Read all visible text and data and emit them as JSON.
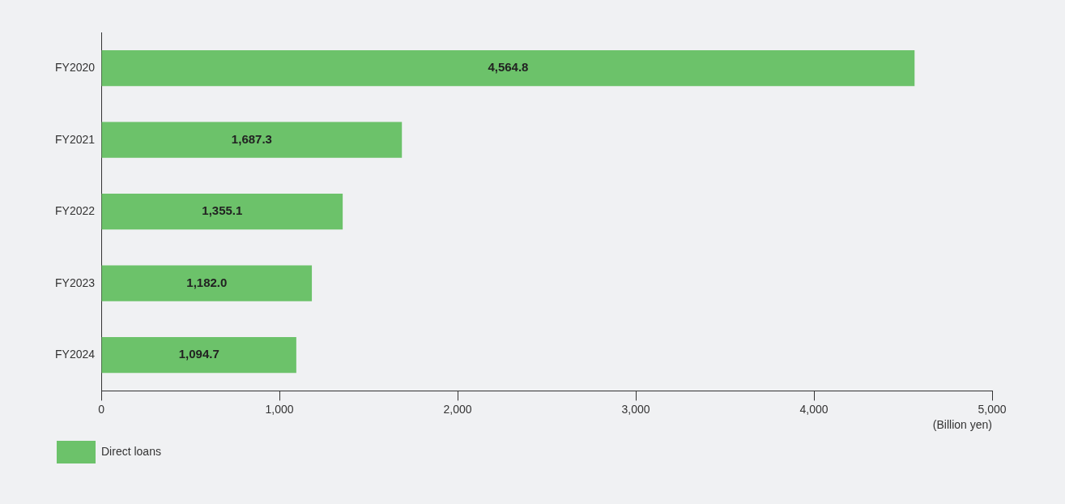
{
  "chart_data": {
    "type": "bar",
    "orientation": "horizontal",
    "categories": [
      "FY2020",
      "FY2021",
      "FY2022",
      "FY2023",
      "FY2024"
    ],
    "series": [
      {
        "name": "Direct loans",
        "color": "#6cc26a",
        "values": [
          4564.8,
          1687.3,
          1355.1,
          1182.0,
          1094.7
        ]
      }
    ],
    "value_labels": [
      "4,564.8",
      "1,687.3",
      "1,355.1",
      "1,182.0",
      "1,094.7"
    ],
    "xlim": [
      0,
      5000
    ],
    "xticks": [
      0,
      {
        "value": 1000,
        "label": "1,000"
      },
      {
        "value": 2000,
        "label": "2,000"
      },
      {
        "value": 3000,
        "label": "3,000"
      },
      {
        "value": 4000,
        "label": "4,000"
      },
      {
        "value": 5000,
        "label": "5,000"
      }
    ],
    "xlabel": "(Billion yen)",
    "legend": "bottom left",
    "grid": false
  }
}
